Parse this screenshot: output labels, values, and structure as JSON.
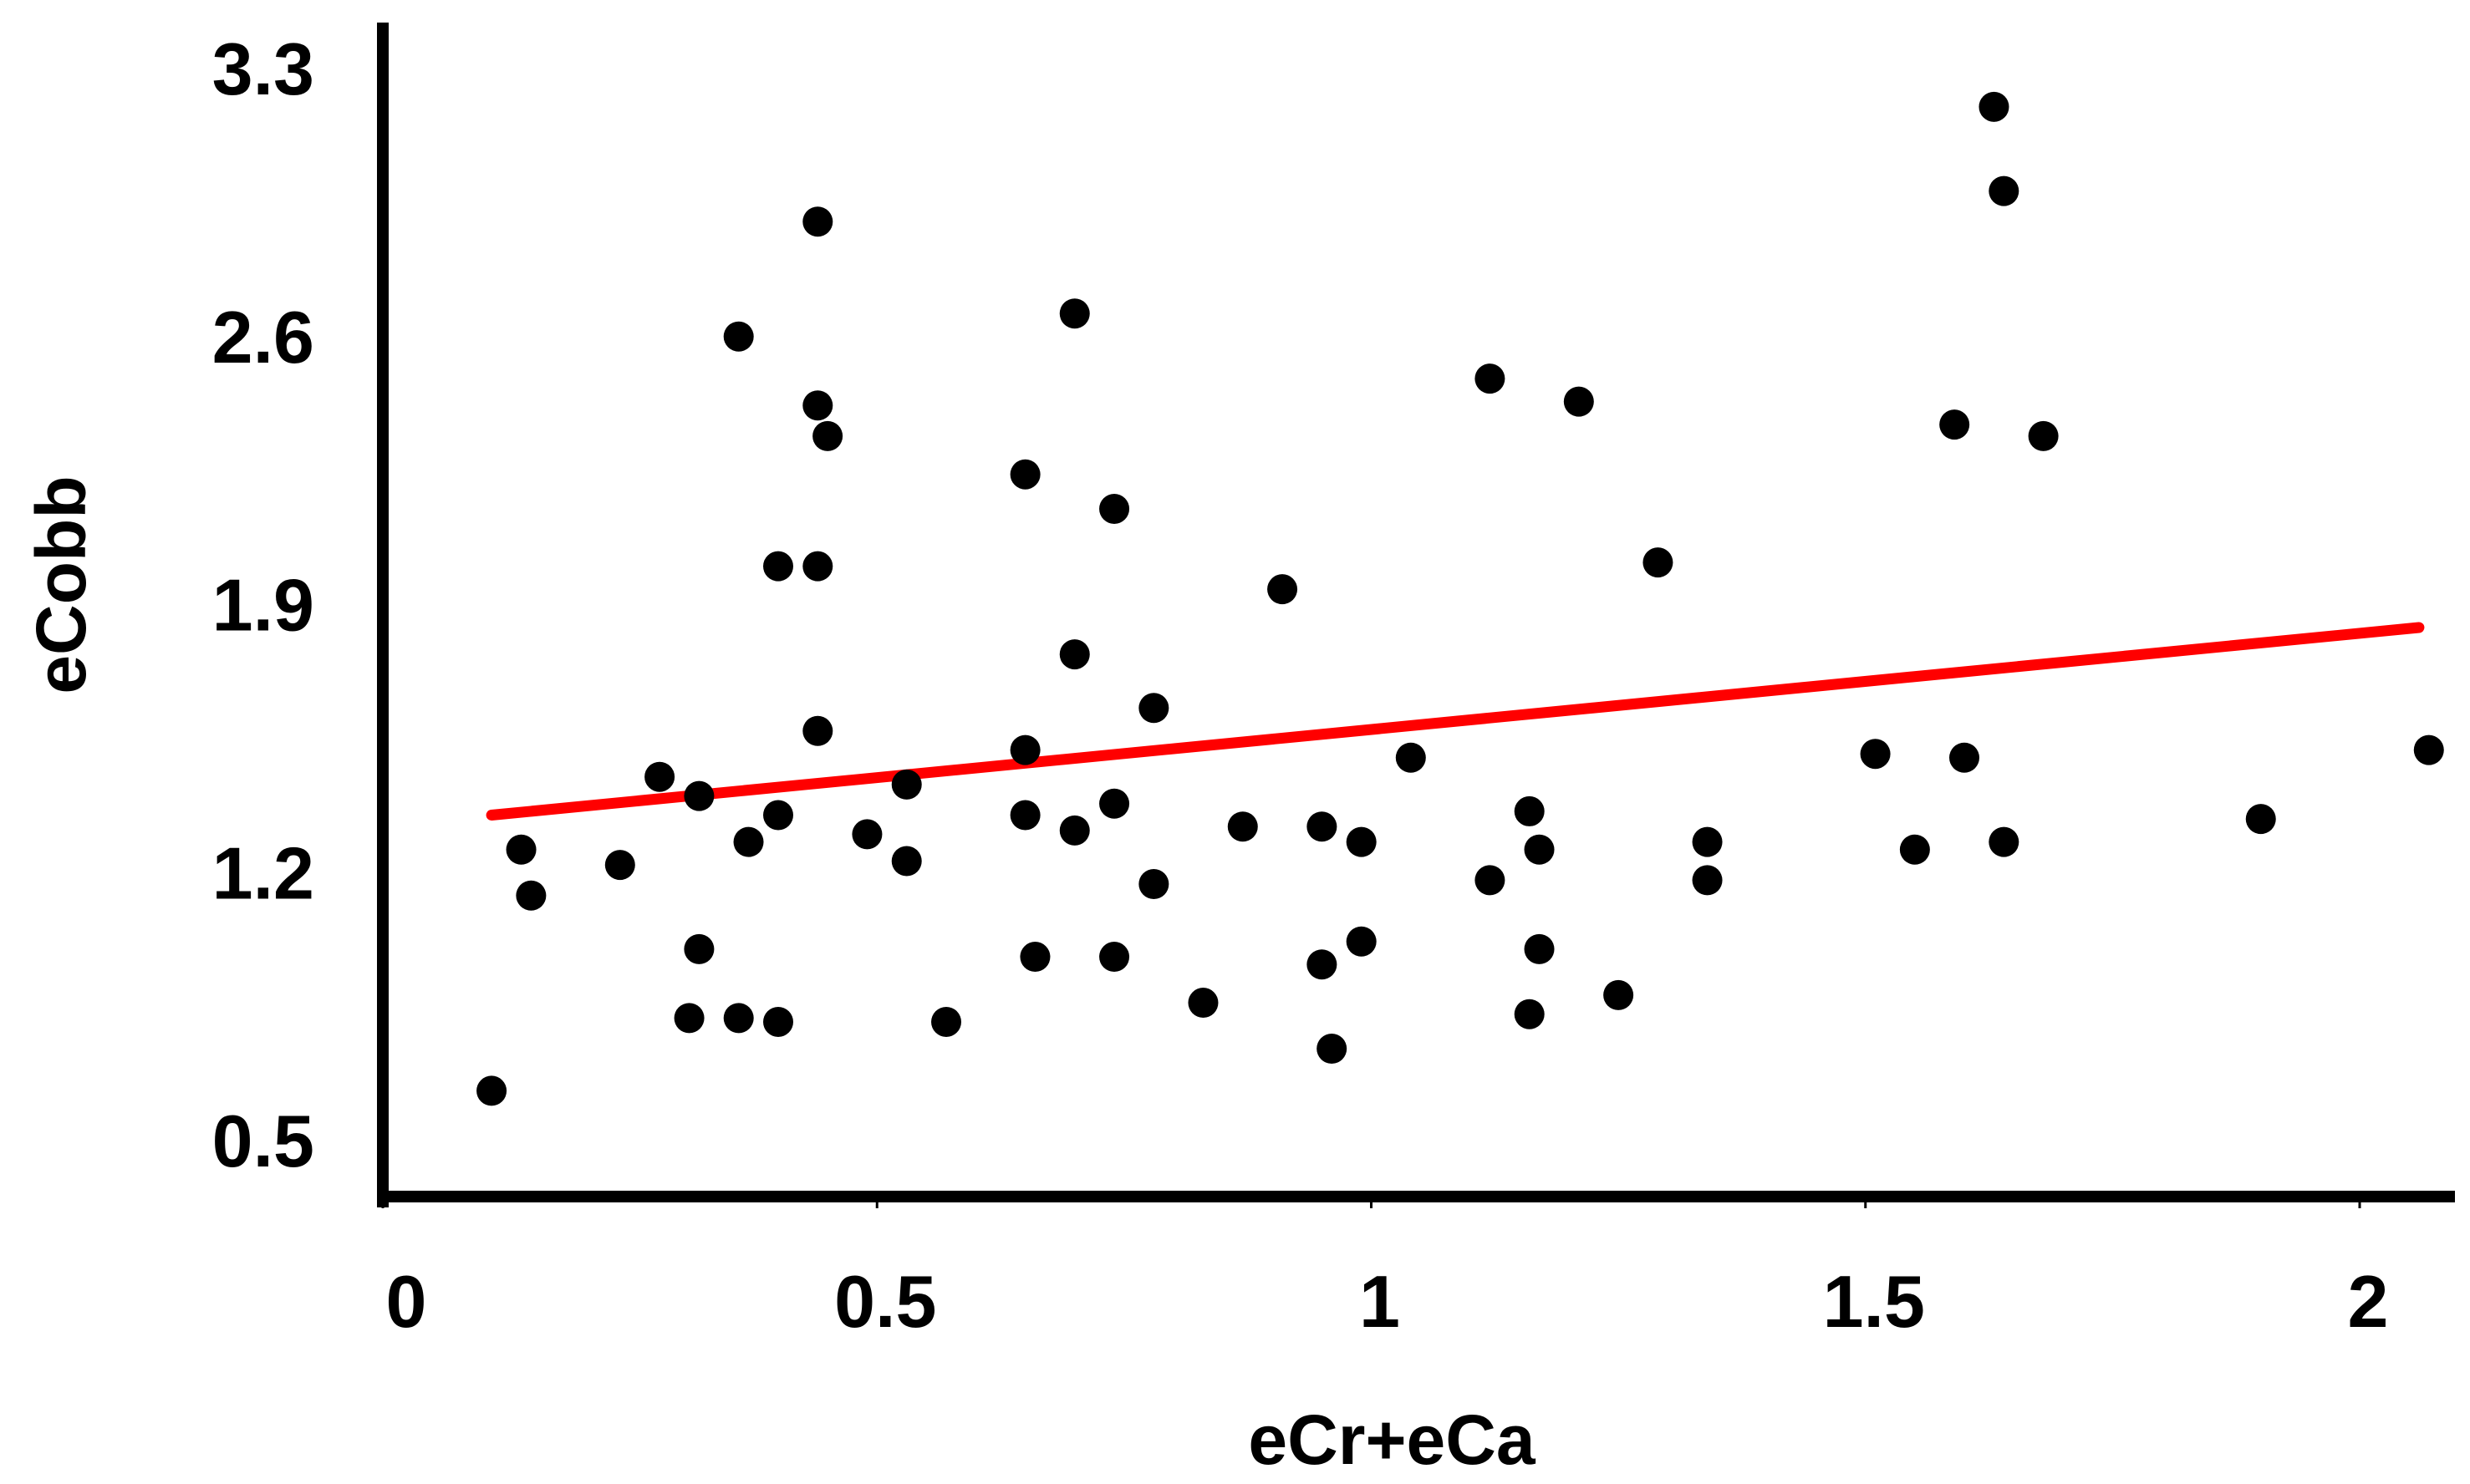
{
  "chart_data": {
    "type": "scatter",
    "title": "",
    "xlabel": "eCr+eCa",
    "ylabel": "eCobb",
    "xlim": [
      0,
      2.1
    ],
    "ylim": [
      0.4,
      3.3
    ],
    "x_ticks": [
      0,
      0.5,
      1,
      1.5,
      2
    ],
    "x_tick_labels": [
      "0",
      "0.5",
      "1",
      "1.5",
      "2"
    ],
    "y_ticks": [
      0.5,
      1.2,
      1.9,
      2.6,
      3.3
    ],
    "y_tick_labels": [
      "0.5",
      "1.2",
      "1.9",
      "2.6",
      "3.3"
    ],
    "grid": false,
    "legend": "none",
    "colors": {
      "points": "#000000",
      "trendline": "#ff0000",
      "axes": "#000000"
    },
    "series": [
      {
        "points": [
          [
            0.11,
            0.63
          ],
          [
            0.14,
            1.26
          ],
          [
            0.15,
            1.14
          ],
          [
            0.24,
            1.22
          ],
          [
            0.28,
            1.45
          ],
          [
            0.32,
            1.4
          ],
          [
            0.32,
            1.0
          ],
          [
            0.31,
            0.82
          ],
          [
            0.36,
            2.6
          ],
          [
            0.37,
            1.28
          ],
          [
            0.36,
            0.82
          ],
          [
            0.4,
            1.35
          ],
          [
            0.4,
            2.0
          ],
          [
            0.4,
            0.81
          ],
          [
            0.44,
            2.9
          ],
          [
            0.44,
            2.42
          ],
          [
            0.45,
            2.34
          ],
          [
            0.44,
            2.0
          ],
          [
            0.44,
            1.57
          ],
          [
            0.49,
            1.3
          ],
          [
            0.53,
            1.43
          ],
          [
            0.53,
            1.23
          ],
          [
            0.57,
            0.81
          ],
          [
            0.65,
            2.24
          ],
          [
            0.65,
            1.52
          ],
          [
            0.65,
            1.35
          ],
          [
            0.66,
            0.98
          ],
          [
            0.7,
            2.66
          ],
          [
            0.7,
            1.77
          ],
          [
            0.7,
            1.31
          ],
          [
            0.74,
            2.15
          ],
          [
            0.74,
            1.38
          ],
          [
            0.74,
            0.98
          ],
          [
            0.78,
            1.63
          ],
          [
            0.78,
            1.17
          ],
          [
            0.83,
            0.86
          ],
          [
            0.87,
            1.32
          ],
          [
            0.91,
            1.94
          ],
          [
            0.95,
            1.32
          ],
          [
            0.95,
            0.96
          ],
          [
            0.96,
            0.74
          ],
          [
            0.99,
            1.28
          ],
          [
            0.99,
            1.02
          ],
          [
            1.04,
            1.5
          ],
          [
            1.12,
            2.49
          ],
          [
            1.12,
            1.18
          ],
          [
            1.16,
            1.36
          ],
          [
            1.17,
            1.26
          ],
          [
            1.17,
            1.0
          ],
          [
            1.16,
            0.83
          ],
          [
            1.21,
            2.43
          ],
          [
            1.25,
            0.88
          ],
          [
            1.29,
            2.01
          ],
          [
            1.34,
            1.28
          ],
          [
            1.34,
            1.18
          ],
          [
            1.51,
            1.51
          ],
          [
            1.55,
            1.26
          ],
          [
            1.59,
            2.37
          ],
          [
            1.6,
            1.5
          ],
          [
            1.63,
            3.2
          ],
          [
            1.64,
            2.98
          ],
          [
            1.64,
            1.28
          ],
          [
            1.68,
            2.34
          ],
          [
            1.9,
            1.34
          ],
          [
            2.07,
            1.52
          ]
        ]
      }
    ],
    "trendline": {
      "x": [
        0.11,
        2.06
      ],
      "y": [
        1.35,
        1.84
      ]
    }
  }
}
